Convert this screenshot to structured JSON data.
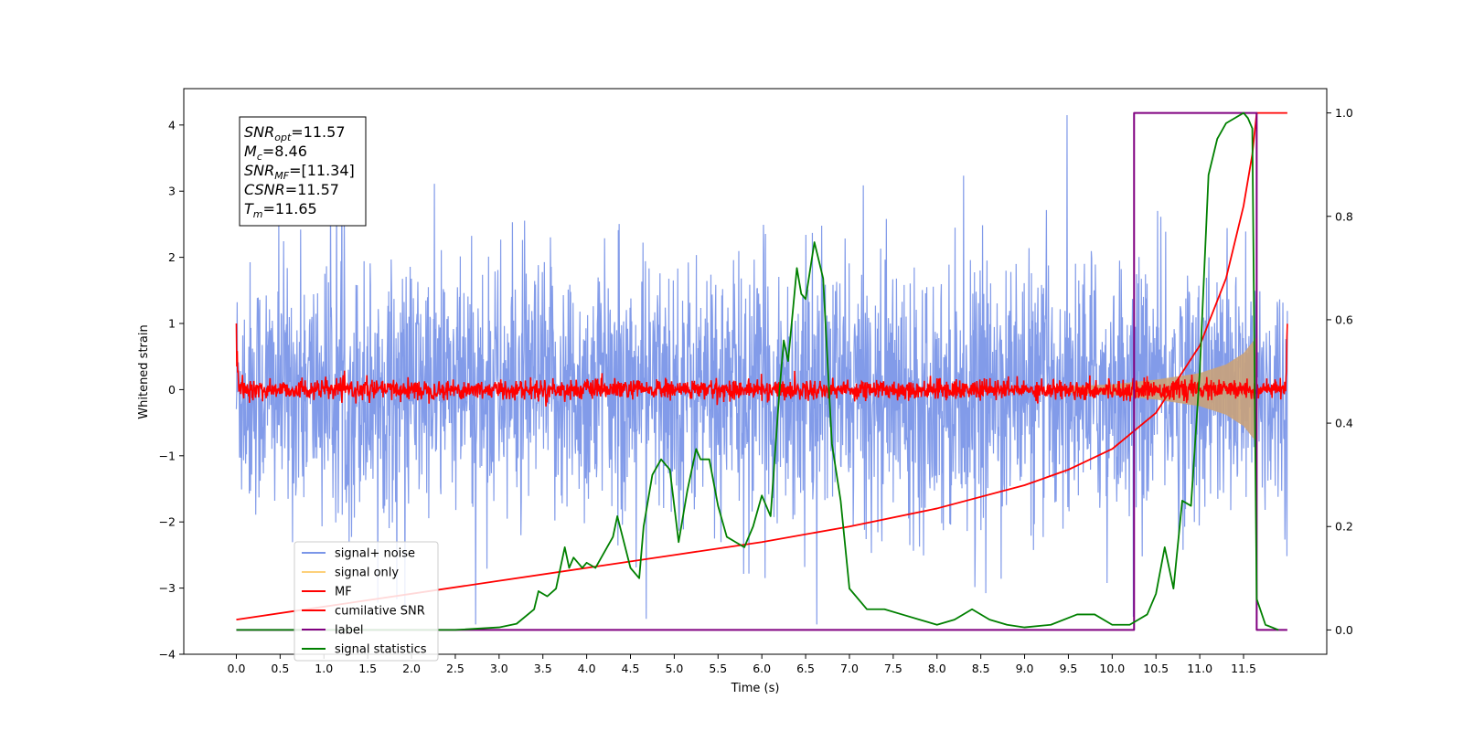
{
  "chart_data": {
    "type": "line",
    "xlabel": "Time (s)",
    "ylabel": "Whitened strain",
    "xlim": [
      -0.6,
      12.45
    ],
    "ylim": [
      -4,
      4.55
    ],
    "y2lim": [
      -0.047,
      1.047
    ],
    "x_ticks": [
      "0.0",
      "0.5",
      "1.0",
      "1.5",
      "2.0",
      "2.5",
      "3.0",
      "3.5",
      "4.0",
      "4.5",
      "5.0",
      "5.5",
      "6.0",
      "6.5",
      "7.0",
      "7.5",
      "8.0",
      "8.5",
      "9.0",
      "9.5",
      "10.0",
      "10.5",
      "11.0",
      "11.5"
    ],
    "y_ticks": [
      "−4",
      "−3",
      "−2",
      "−1",
      "0",
      "1",
      "2",
      "3",
      "4"
    ],
    "y2_ticks": [
      "0.0",
      "0.2",
      "0.4",
      "0.6",
      "0.8",
      "1.0"
    ],
    "grid": false,
    "legend_position": "lower-left",
    "info_box": {
      "snr_opt": "11.57",
      "mc": "8.46",
      "snr_mf": "[11.34]",
      "csnr": "11.57",
      "tm": "11.65"
    },
    "series": [
      {
        "name": "signal+ noise",
        "color": "#7b96e8",
        "axis": "left",
        "description": "noisy band roughly within ±2.5, peaks up to ~4.2"
      },
      {
        "name": "signal only",
        "color": "#c9a27a",
        "axis": "left",
        "chirp_envelope": {
          "x": [
            9.5,
            10.0,
            10.5,
            11.0,
            11.3,
            11.5,
            11.65
          ],
          "amp": [
            0.05,
            0.08,
            0.15,
            0.25,
            0.38,
            0.55,
            0.8
          ]
        }
      },
      {
        "name": "MF",
        "color": "#ff0000",
        "axis": "left",
        "description": "matched-filter output roughly within ±0.2"
      },
      {
        "name": "cumilative SNR",
        "color": "#ff0000",
        "axis": "right",
        "x": [
          0.0,
          1.0,
          2.0,
          3.0,
          4.0,
          5.0,
          6.0,
          7.0,
          8.0,
          9.0,
          9.5,
          10.0,
          10.5,
          11.0,
          11.3,
          11.5,
          11.6,
          11.65,
          12.0
        ],
        "y": [
          0.02,
          0.045,
          0.07,
          0.095,
          0.12,
          0.145,
          0.17,
          0.2,
          0.235,
          0.28,
          0.31,
          0.35,
          0.42,
          0.55,
          0.68,
          0.82,
          0.92,
          1.0,
          1.0
        ]
      },
      {
        "name": "label",
        "color": "#800080",
        "axis": "right",
        "x": [
          0.0,
          10.25,
          10.25,
          11.65,
          11.65,
          12.0
        ],
        "y": [
          0.0,
          0.0,
          1.0,
          1.0,
          0.0,
          0.0
        ]
      },
      {
        "name": "signal statistics",
        "color": "#008000",
        "axis": "right",
        "x": [
          0.0,
          0.5,
          1.0,
          1.5,
          2.0,
          2.5,
          3.0,
          3.2,
          3.4,
          3.45,
          3.55,
          3.65,
          3.75,
          3.8,
          3.85,
          3.95,
          4.0,
          4.1,
          4.2,
          4.3,
          4.35,
          4.5,
          4.6,
          4.65,
          4.75,
          4.85,
          4.95,
          5.05,
          5.15,
          5.25,
          5.3,
          5.4,
          5.5,
          5.6,
          5.7,
          5.8,
          5.9,
          6.0,
          6.1,
          6.2,
          6.25,
          6.3,
          6.4,
          6.45,
          6.5,
          6.6,
          6.7,
          6.8,
          6.9,
          7.0,
          7.2,
          7.4,
          7.6,
          7.8,
          8.0,
          8.2,
          8.4,
          8.6,
          8.8,
          9.0,
          9.3,
          9.6,
          9.8,
          10.0,
          10.2,
          10.4,
          10.5,
          10.6,
          10.7,
          10.8,
          10.9,
          11.0,
          11.1,
          11.2,
          11.3,
          11.4,
          11.5,
          11.55,
          11.6,
          11.65,
          11.75,
          11.9
        ],
        "y": [
          0.0,
          0.0,
          0.0,
          0.0,
          0.0,
          0.0,
          0.005,
          0.012,
          0.04,
          0.075,
          0.065,
          0.08,
          0.16,
          0.12,
          0.14,
          0.12,
          0.13,
          0.12,
          0.15,
          0.18,
          0.22,
          0.12,
          0.1,
          0.2,
          0.3,
          0.33,
          0.31,
          0.17,
          0.27,
          0.35,
          0.33,
          0.33,
          0.24,
          0.18,
          0.17,
          0.16,
          0.2,
          0.26,
          0.22,
          0.46,
          0.56,
          0.52,
          0.7,
          0.65,
          0.64,
          0.75,
          0.68,
          0.36,
          0.25,
          0.08,
          0.04,
          0.04,
          0.03,
          0.02,
          0.01,
          0.02,
          0.04,
          0.02,
          0.01,
          0.005,
          0.01,
          0.03,
          0.03,
          0.01,
          0.01,
          0.03,
          0.07,
          0.16,
          0.08,
          0.25,
          0.24,
          0.5,
          0.88,
          0.95,
          0.98,
          0.99,
          1.0,
          0.99,
          0.97,
          0.06,
          0.01,
          0.0
        ]
      }
    ]
  }
}
